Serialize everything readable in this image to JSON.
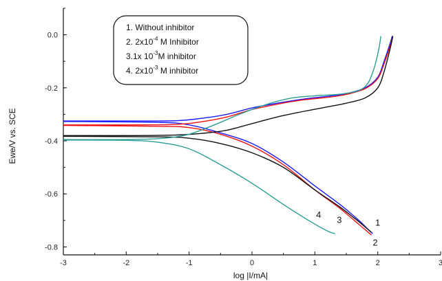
{
  "chart_data": {
    "type": "line",
    "xlabel": "log |I/mA|",
    "ylabel": "Ewe/V vs. SCE",
    "xlim": [
      -3,
      3
    ],
    "ylim": [
      -0.83,
      0.1
    ],
    "x_ticks": [
      -3,
      -2,
      -1,
      0,
      1,
      2,
      3
    ],
    "y_ticks": [
      0.0,
      -0.2,
      -0.4,
      -0.6,
      -0.8
    ],
    "x_tick_labels": [
      "-3",
      "-2",
      "-1",
      "0",
      "1",
      "2",
      "3"
    ],
    "y_tick_labels": [
      "0.0",
      "-0.2",
      "-0.4",
      "-0.6",
      "-0.8"
    ],
    "legend": {
      "placement": "top-left",
      "entries": [
        {
          "prefix": "1. Without inhibitor",
          "sup": "",
          "suffix": ""
        },
        {
          "prefix": "2. 2x10",
          "sup": "-4",
          "suffix": " M  Inhibitor"
        },
        {
          "prefix": "3.1x 10",
          "sup": "-3",
          "suffix": "M inhibitor"
        },
        {
          "prefix": "4. 2x10",
          "sup": "-3",
          "suffix": " M inhibitor"
        }
      ]
    },
    "series": [
      {
        "color": "#1a1aff",
        "label": "1",
        "label_at": [
          1.96,
          -0.72
        ],
        "anodic": [
          [
            -3,
            -0.325
          ],
          [
            -2,
            -0.325
          ],
          [
            -1.2,
            -0.324
          ],
          [
            -0.8,
            -0.315
          ],
          [
            -0.4,
            -0.3
          ],
          [
            0,
            -0.276
          ],
          [
            0.4,
            -0.258
          ],
          [
            0.8,
            -0.243
          ],
          [
            1.2,
            -0.232
          ],
          [
            1.5,
            -0.222
          ],
          [
            1.8,
            -0.2
          ],
          [
            2.0,
            -0.16
          ],
          [
            2.1,
            -0.1
          ],
          [
            2.2,
            -0.03
          ],
          [
            2.23,
            -0.005
          ]
        ],
        "cathodic": [
          [
            -3,
            -0.327
          ],
          [
            -1.5,
            -0.33
          ],
          [
            -1.0,
            -0.34
          ],
          [
            -0.5,
            -0.37
          ],
          [
            0,
            -0.41
          ],
          [
            0.5,
            -0.48
          ],
          [
            1.0,
            -0.57
          ],
          [
            1.4,
            -0.64
          ],
          [
            1.7,
            -0.7
          ],
          [
            1.85,
            -0.735
          ],
          [
            1.92,
            -0.75
          ]
        ]
      },
      {
        "color": "#ee1111",
        "label": "2",
        "label_at": [
          1.92,
          -0.795
        ],
        "anodic": [
          [
            -3,
            -0.34
          ],
          [
            -2,
            -0.34
          ],
          [
            -1.2,
            -0.338
          ],
          [
            -0.8,
            -0.328
          ],
          [
            -0.4,
            -0.31
          ],
          [
            0,
            -0.282
          ],
          [
            0.4,
            -0.262
          ],
          [
            0.8,
            -0.246
          ],
          [
            1.2,
            -0.236
          ],
          [
            1.5,
            -0.225
          ],
          [
            1.8,
            -0.203
          ],
          [
            2.0,
            -0.165
          ],
          [
            2.1,
            -0.11
          ],
          [
            2.2,
            -0.04
          ],
          [
            2.24,
            -0.005
          ]
        ],
        "cathodic": [
          [
            -3,
            -0.342
          ],
          [
            -1.5,
            -0.345
          ],
          [
            -1.0,
            -0.35
          ],
          [
            -0.5,
            -0.375
          ],
          [
            0,
            -0.42
          ],
          [
            0.5,
            -0.49
          ],
          [
            1.0,
            -0.585
          ],
          [
            1.4,
            -0.655
          ],
          [
            1.7,
            -0.715
          ],
          [
            1.85,
            -0.745
          ],
          [
            1.9,
            -0.755
          ]
        ]
      },
      {
        "color": "#111111",
        "label": "3",
        "label_at": [
          1.35,
          -0.71
        ],
        "anodic": [
          [
            -3,
            -0.38
          ],
          [
            -2,
            -0.38
          ],
          [
            -1.2,
            -0.378
          ],
          [
            -0.8,
            -0.372
          ],
          [
            -0.4,
            -0.36
          ],
          [
            0,
            -0.335
          ],
          [
            0.4,
            -0.31
          ],
          [
            0.8,
            -0.29
          ],
          [
            1.2,
            -0.272
          ],
          [
            1.5,
            -0.258
          ],
          [
            1.8,
            -0.238
          ],
          [
            2.0,
            -0.2
          ],
          [
            2.1,
            -0.14
          ],
          [
            2.2,
            -0.05
          ],
          [
            2.24,
            -0.005
          ]
        ],
        "cathodic": [
          [
            -3,
            -0.383
          ],
          [
            -1.5,
            -0.385
          ],
          [
            -1.0,
            -0.39
          ],
          [
            -0.5,
            -0.41
          ],
          [
            0,
            -0.445
          ],
          [
            0.5,
            -0.5
          ],
          [
            1.0,
            -0.585
          ],
          [
            1.4,
            -0.65
          ],
          [
            1.7,
            -0.705
          ],
          [
            1.85,
            -0.735
          ],
          [
            1.9,
            -0.745
          ]
        ]
      },
      {
        "color": "#2a9d94",
        "label": "4",
        "label_at": [
          1.02,
          -0.69
        ],
        "anodic": [
          [
            -3,
            -0.395
          ],
          [
            -2,
            -0.395
          ],
          [
            -1.4,
            -0.39
          ],
          [
            -1.0,
            -0.375
          ],
          [
            -0.6,
            -0.34
          ],
          [
            -0.2,
            -0.3
          ],
          [
            0.2,
            -0.265
          ],
          [
            0.6,
            -0.24
          ],
          [
            1.0,
            -0.23
          ],
          [
            1.4,
            -0.224
          ],
          [
            1.7,
            -0.21
          ],
          [
            1.85,
            -0.18
          ],
          [
            1.95,
            -0.12
          ],
          [
            2.02,
            -0.05
          ],
          [
            2.05,
            -0.005
          ]
        ],
        "cathodic": [
          [
            -3,
            -0.397
          ],
          [
            -2,
            -0.398
          ],
          [
            -1.5,
            -0.405
          ],
          [
            -1.0,
            -0.43
          ],
          [
            -0.5,
            -0.49
          ],
          [
            0,
            -0.56
          ],
          [
            0.5,
            -0.64
          ],
          [
            0.9,
            -0.7
          ],
          [
            1.2,
            -0.74
          ],
          [
            1.32,
            -0.75
          ]
        ]
      }
    ]
  }
}
